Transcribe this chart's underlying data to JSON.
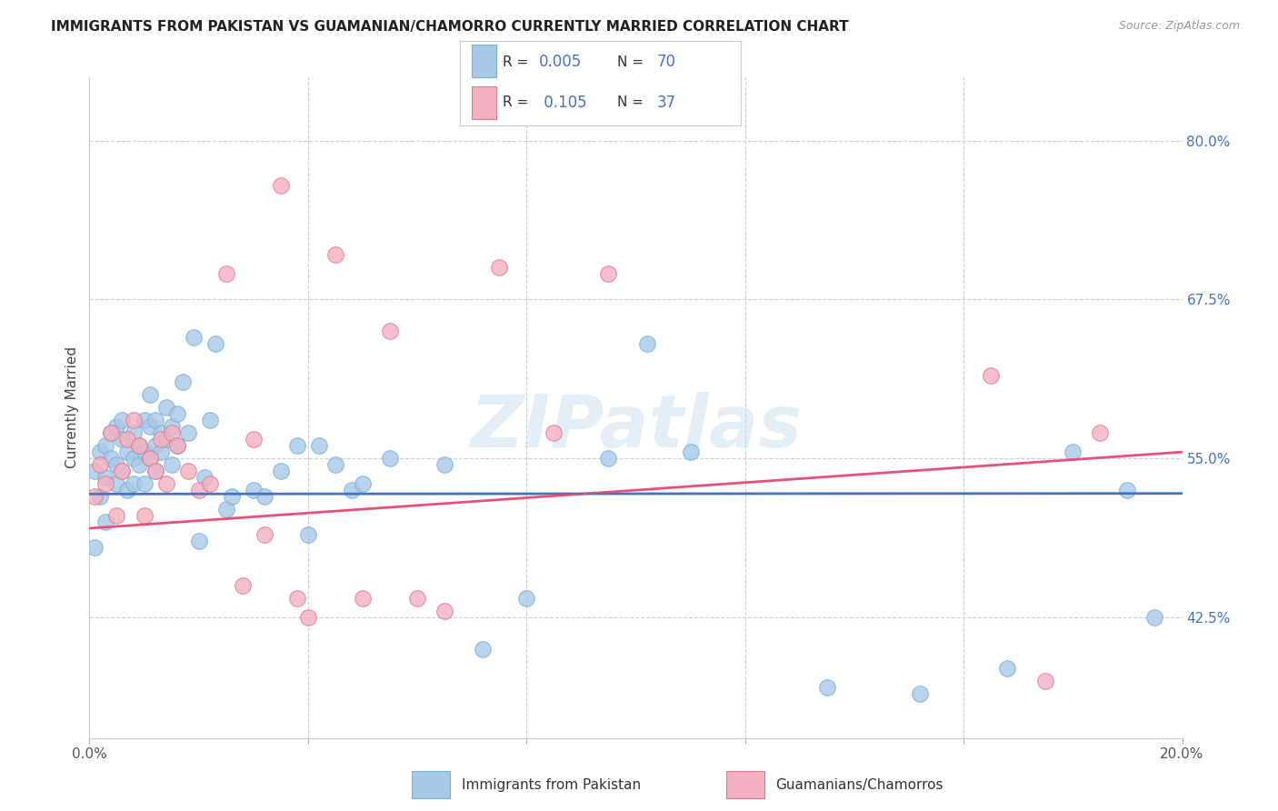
{
  "title": "IMMIGRANTS FROM PAKISTAN VS GUAMANIAN/CHAMORRO CURRENTLY MARRIED CORRELATION CHART",
  "source": "Source: ZipAtlas.com",
  "ylabel": "Currently Married",
  "right_yticks": [
    42.5,
    55.0,
    67.5,
    80.0
  ],
  "right_ytick_labels": [
    "42.5%",
    "55.0%",
    "67.5%",
    "80.0%"
  ],
  "xmin": 0.0,
  "xmax": 20.0,
  "ymin": 33.0,
  "ymax": 85.0,
  "watermark": "ZIPatlas",
  "series1_color": "#a8c8e8",
  "series1_edge": "#7aafd4",
  "series2_color": "#f4b0c0",
  "series2_edge": "#e07890",
  "trend1_color": "#4472c4",
  "trend2_color": "#e8507a",
  "blue_dots_x": [
    0.1,
    0.1,
    0.2,
    0.2,
    0.3,
    0.3,
    0.3,
    0.4,
    0.4,
    0.5,
    0.5,
    0.5,
    0.6,
    0.6,
    0.6,
    0.7,
    0.7,
    0.8,
    0.8,
    0.8,
    0.9,
    0.9,
    1.0,
    1.0,
    1.0,
    1.1,
    1.1,
    1.1,
    1.2,
    1.2,
    1.2,
    1.3,
    1.3,
    1.4,
    1.4,
    1.5,
    1.5,
    1.6,
    1.6,
    1.7,
    1.8,
    1.9,
    2.0,
    2.1,
    2.2,
    2.3,
    2.5,
    2.6,
    3.0,
    3.2,
    3.5,
    3.8,
    4.0,
    4.2,
    4.5,
    4.8,
    5.0,
    5.5,
    6.5,
    7.2,
    8.0,
    9.5,
    10.2,
    11.0,
    13.5,
    15.2,
    16.8,
    18.0,
    19.0,
    19.5
  ],
  "blue_dots_y": [
    54.0,
    48.0,
    55.5,
    52.0,
    56.0,
    53.5,
    50.0,
    57.0,
    55.0,
    54.5,
    57.5,
    53.0,
    56.5,
    54.0,
    58.0,
    55.5,
    52.5,
    57.0,
    55.0,
    53.0,
    56.0,
    54.5,
    58.0,
    55.5,
    53.0,
    57.5,
    55.0,
    60.0,
    58.0,
    56.0,
    54.0,
    57.0,
    55.5,
    59.0,
    56.5,
    57.5,
    54.5,
    58.5,
    56.0,
    61.0,
    57.0,
    64.5,
    48.5,
    53.5,
    58.0,
    64.0,
    51.0,
    52.0,
    52.5,
    52.0,
    54.0,
    56.0,
    49.0,
    56.0,
    54.5,
    52.5,
    53.0,
    55.0,
    54.5,
    40.0,
    44.0,
    55.0,
    64.0,
    55.5,
    37.0,
    36.5,
    38.5,
    55.5,
    52.5,
    42.5
  ],
  "pink_dots_x": [
    0.1,
    0.2,
    0.3,
    0.4,
    0.5,
    0.6,
    0.7,
    0.8,
    0.9,
    1.0,
    1.1,
    1.2,
    1.3,
    1.4,
    1.5,
    1.6,
    1.8,
    2.0,
    2.2,
    2.5,
    2.8,
    3.0,
    3.2,
    3.5,
    3.8,
    4.0,
    4.5,
    5.0,
    5.5,
    6.0,
    6.5,
    7.5,
    8.5,
    9.5,
    16.5,
    17.5,
    18.5
  ],
  "pink_dots_y": [
    52.0,
    54.5,
    53.0,
    57.0,
    50.5,
    54.0,
    56.5,
    58.0,
    56.0,
    50.5,
    55.0,
    54.0,
    56.5,
    53.0,
    57.0,
    56.0,
    54.0,
    52.5,
    53.0,
    69.5,
    45.0,
    56.5,
    49.0,
    76.5,
    44.0,
    42.5,
    71.0,
    44.0,
    65.0,
    44.0,
    43.0,
    70.0,
    57.0,
    69.5,
    61.5,
    37.5,
    57.0
  ]
}
